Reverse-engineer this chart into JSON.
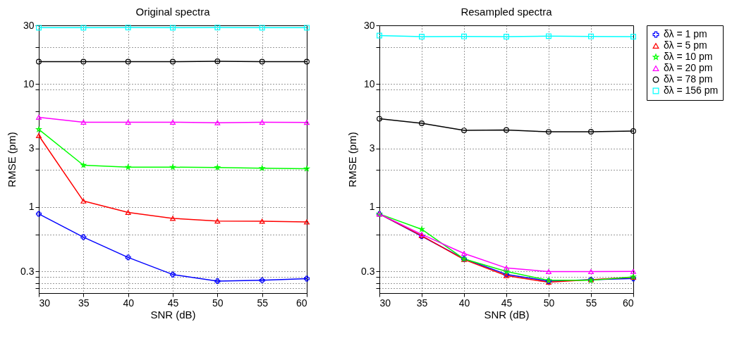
{
  "chart_data": [
    {
      "type": "line",
      "title": "Original spectra",
      "xlabel": "SNR (dB)",
      "ylabel": "RMSE (pm)",
      "x": [
        30,
        35,
        40,
        45,
        50,
        55,
        60
      ],
      "xlim": [
        30,
        60
      ],
      "xticks": [
        30,
        35,
        40,
        45,
        50,
        55,
        60
      ],
      "ylim": [
        0.2,
        30
      ],
      "yticks": [
        {
          "value": 0.22,
          "label": null
        },
        {
          "value": 0.24,
          "label": null
        },
        {
          "value": 0.27,
          "label": null
        },
        0.3,
        {
          "value": 0.6,
          "label": null
        },
        1,
        {
          "value": 2,
          "label": null
        },
        3,
        {
          "value": 6,
          "label": null
        },
        {
          "value": 9,
          "label": null
        },
        10,
        {
          "value": 20,
          "label": null
        },
        30
      ],
      "log": true,
      "grid": true,
      "legend": false,
      "series": [
        {
          "color": "#0000ff",
          "marker": "cross",
          "values": [
            0.88,
            0.57,
            0.39,
            0.283,
            0.25,
            0.254,
            0.262
          ]
        },
        {
          "color": "#ff0000",
          "marker": "triangle",
          "values": [
            3.81,
            1.12,
            0.905,
            0.81,
            0.77,
            0.767,
            0.757
          ]
        },
        {
          "color": "#00ff00",
          "marker": "star",
          "values": [
            4.28,
            2.19,
            2.11,
            2.11,
            2.1,
            2.07,
            2.05
          ]
        },
        {
          "color": "#ff00ff",
          "marker": "triangle",
          "values": [
            5.37,
            4.9,
            4.9,
            4.9,
            4.85,
            4.9,
            4.88
          ]
        },
        {
          "color": "#000000",
          "marker": "circle",
          "values": [
            15.2,
            15.2,
            15.2,
            15.2,
            15.3,
            15.2,
            15.2
          ]
        },
        {
          "color": "#00ffff",
          "marker": "square",
          "values": [
            28.7,
            28.7,
            28.8,
            28.7,
            28.8,
            28.7,
            28.7
          ]
        }
      ]
    },
    {
      "type": "line",
      "title": "Resampled spectra",
      "xlabel": "SNR (dB)",
      "ylabel": "RMSE (pm)",
      "x": [
        30,
        35,
        40,
        45,
        50,
        55,
        60
      ],
      "xlim": [
        30,
        60
      ],
      "xticks": [
        30,
        35,
        40,
        45,
        50,
        55,
        60
      ],
      "ylim": [
        0.2,
        30
      ],
      "yticks": [
        {
          "value": 0.22,
          "label": null
        },
        {
          "value": 0.24,
          "label": null
        },
        {
          "value": 0.27,
          "label": null
        },
        0.3,
        {
          "value": 0.6,
          "label": null
        },
        1,
        {
          "value": 2,
          "label": null
        },
        3,
        {
          "value": 6,
          "label": null
        },
        {
          "value": 9,
          "label": null
        },
        10,
        {
          "value": 20,
          "label": null
        },
        30
      ],
      "log": true,
      "grid": true,
      "legend": "right",
      "series": [
        {
          "name": "δλ = 1 pm",
          "color": "#0000ff",
          "marker": "cross",
          "values": [
            0.88,
            0.58,
            0.38,
            0.284,
            0.25,
            0.257,
            0.263
          ]
        },
        {
          "name": "δλ = 5 pm",
          "color": "#ff0000",
          "marker": "triangle",
          "values": [
            0.88,
            0.585,
            0.375,
            0.277,
            0.245,
            0.257,
            0.269
          ]
        },
        {
          "name": "δλ = 10 pm",
          "color": "#00ff00",
          "marker": "star",
          "values": [
            0.88,
            0.66,
            0.379,
            0.3,
            0.254,
            0.254,
            0.271
          ]
        },
        {
          "name": "δλ = 20 pm",
          "color": "#ff00ff",
          "marker": "triangle",
          "values": [
            0.88,
            0.6,
            0.42,
            0.32,
            0.299,
            0.299,
            0.3
          ]
        },
        {
          "name": "δλ = 78 pm",
          "color": "#000000",
          "marker": "circle",
          "values": [
            5.22,
            4.8,
            4.2,
            4.23,
            4.09,
            4.1,
            4.15
          ]
        },
        {
          "name": "δλ = 156 pm",
          "color": "#00ffff",
          "marker": "square",
          "values": [
            24.8,
            24.3,
            24.4,
            24.3,
            24.5,
            24.4,
            24.3
          ]
        }
      ]
    }
  ]
}
